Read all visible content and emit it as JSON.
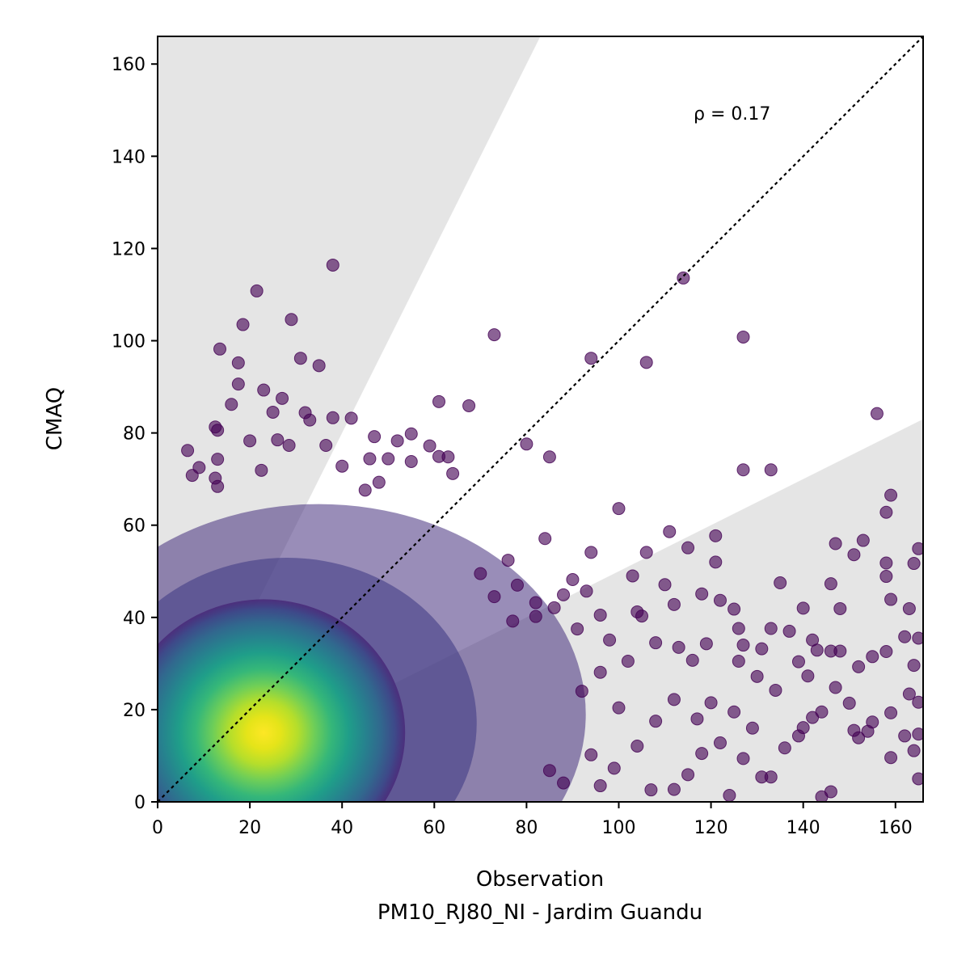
{
  "chart_data": {
    "type": "scatter",
    "title": "",
    "xlabel": "Observation",
    "xlabel_sub": "PM10_RJ80_NI - Jardim Guandu",
    "ylabel": "CMAQ",
    "xlim": [
      0,
      166
    ],
    "ylim": [
      0,
      166
    ],
    "xticks": [
      "0",
      "20",
      "40",
      "60",
      "80",
      "100",
      "120",
      "140",
      "160"
    ],
    "yticks": [
      "0",
      "20",
      "40",
      "60",
      "80",
      "100",
      "120",
      "140",
      "160"
    ],
    "grid": false,
    "legend": "none",
    "annotation": "ρ = 0.17",
    "reference_line": "1:1",
    "factor_of_two_band": true,
    "color_by": "point density",
    "colormap": [
      "#440154",
      "#3b528b",
      "#21918c",
      "#5ec962",
      "#fde725"
    ],
    "band_color": "#e5e5e5",
    "point_color_outlier": "#440154",
    "density_peak": [
      23,
      15
    ],
    "outliers": [
      [
        38,
        116.4
      ],
      [
        21.5,
        110.8
      ],
      [
        114,
        113.6
      ],
      [
        29,
        104.6
      ],
      [
        18.5,
        103.5
      ],
      [
        73,
        101.3
      ],
      [
        127,
        100.8
      ],
      [
        94,
        96.2
      ],
      [
        31,
        96.2
      ],
      [
        13.5,
        98.2
      ],
      [
        106,
        95.3
      ],
      [
        35,
        94.6
      ],
      [
        17.5,
        95.2
      ],
      [
        17.5,
        90.6
      ],
      [
        23,
        89.3
      ],
      [
        27,
        87.5
      ],
      [
        16,
        86.2
      ],
      [
        61,
        86.8
      ],
      [
        67.5,
        85.9
      ],
      [
        156,
        84.2
      ],
      [
        12.5,
        81.3
      ],
      [
        13,
        80.6
      ],
      [
        32,
        84.4
      ],
      [
        38,
        83.3
      ],
      [
        42,
        83.2
      ],
      [
        33,
        82.8
      ],
      [
        25,
        84.5
      ],
      [
        20,
        78.3
      ],
      [
        6.5,
        76.2
      ],
      [
        36.5,
        77.3
      ],
      [
        26,
        78.5
      ],
      [
        80,
        77.6
      ],
      [
        9,
        72.5
      ],
      [
        7.5,
        70.8
      ],
      [
        13,
        74.3
      ],
      [
        28.5,
        77.3
      ],
      [
        63,
        74.8
      ],
      [
        85,
        74.8
      ],
      [
        127,
        72
      ],
      [
        133,
        72
      ],
      [
        55,
        73.8
      ],
      [
        12.5,
        70.2
      ],
      [
        64,
        71.2
      ],
      [
        22.5,
        71.9
      ],
      [
        13,
        68.4
      ],
      [
        100,
        63.6
      ],
      [
        159,
        66.5
      ],
      [
        158,
        62.8
      ],
      [
        111,
        58.6
      ],
      [
        121,
        57.7
      ],
      [
        84,
        57.1
      ],
      [
        147,
        56
      ],
      [
        153,
        56.7
      ],
      [
        115,
        55.1
      ],
      [
        165,
        54.9
      ],
      [
        94,
        54.1
      ],
      [
        106,
        54.1
      ],
      [
        151,
        53.6
      ],
      [
        121,
        52
      ],
      [
        158,
        51.8
      ],
      [
        103,
        49
      ],
      [
        164,
        51.7
      ],
      [
        110,
        47.1
      ],
      [
        90,
        48.2
      ],
      [
        135,
        47.5
      ],
      [
        146,
        47.3
      ],
      [
        158,
        48.9
      ],
      [
        118,
        45.1
      ],
      [
        159,
        43.9
      ],
      [
        112,
        42.8
      ],
      [
        122,
        43.7
      ],
      [
        140,
        42
      ],
      [
        148,
        41.9
      ],
      [
        163,
        41.9
      ],
      [
        125,
        41.8
      ],
      [
        104,
        41.2
      ],
      [
        105,
        40.3
      ],
      [
        126,
        37.6
      ],
      [
        133,
        37.6
      ],
      [
        137,
        37
      ],
      [
        142,
        35.1
      ],
      [
        162,
        35.8
      ],
      [
        165,
        35.5
      ],
      [
        131,
        33.2
      ],
      [
        148,
        32.7
      ],
      [
        146,
        32.7
      ],
      [
        152,
        29.3
      ],
      [
        158,
        32.6
      ],
      [
        164,
        29.6
      ],
      [
        155,
        31.5
      ],
      [
        116,
        30.7
      ],
      [
        126,
        30.5
      ],
      [
        139,
        30.4
      ],
      [
        143,
        32.9
      ],
      [
        141,
        27.3
      ],
      [
        130,
        27.2
      ],
      [
        134,
        24.2
      ],
      [
        147,
        24.8
      ],
      [
        163,
        23.4
      ],
      [
        165,
        21.6
      ],
      [
        150,
        21.4
      ],
      [
        120,
        21.5
      ],
      [
        112,
        22.2
      ],
      [
        144,
        19.5
      ],
      [
        142,
        18.3
      ],
      [
        139,
        14.3
      ],
      [
        155,
        17.3
      ],
      [
        159,
        19.3
      ],
      [
        151,
        15.5
      ],
      [
        152,
        13.9
      ],
      [
        154,
        15.3
      ],
      [
        162,
        14.3
      ],
      [
        164,
        11.1
      ],
      [
        165,
        14.7
      ],
      [
        159,
        9.6
      ],
      [
        131,
        5.4
      ],
      [
        133,
        5.4
      ],
      [
        165,
        5
      ],
      [
        146,
        2.2
      ],
      [
        144,
        1.1
      ],
      [
        124,
        1.4
      ],
      [
        112,
        2.7
      ],
      [
        107,
        2.6
      ],
      [
        115,
        5.9
      ],
      [
        99,
        7.3
      ],
      [
        96,
        3.5
      ],
      [
        88,
        4.1
      ],
      [
        85,
        6.8
      ],
      [
        94,
        10.2
      ],
      [
        104,
        12.1
      ],
      [
        118,
        10.5
      ],
      [
        122,
        12.8
      ],
      [
        127,
        9.4
      ],
      [
        136,
        11.7
      ],
      [
        140,
        16.1
      ],
      [
        129,
        16
      ],
      [
        125,
        19.5
      ],
      [
        117,
        18
      ],
      [
        108,
        17.5
      ],
      [
        100,
        20.4
      ],
      [
        92,
        24
      ],
      [
        96,
        28.1
      ],
      [
        102,
        30.5
      ],
      [
        108,
        34.5
      ],
      [
        113,
        33.5
      ],
      [
        119,
        34.3
      ],
      [
        127,
        34
      ],
      [
        98,
        35.1
      ],
      [
        91,
        37.5
      ],
      [
        86,
        42.1
      ],
      [
        82,
        40.2
      ],
      [
        96,
        40.5
      ],
      [
        76,
        52.4
      ],
      [
        70,
        49.5
      ],
      [
        78,
        47
      ],
      [
        73,
        44.5
      ],
      [
        88,
        44.9
      ],
      [
        93,
        45.7
      ],
      [
        82,
        43.2
      ],
      [
        77,
        39.2
      ],
      [
        55,
        79.8
      ],
      [
        59,
        77.2
      ],
      [
        61,
        74.9
      ],
      [
        52,
        78.3
      ],
      [
        47,
        79.2
      ],
      [
        50,
        74.4
      ],
      [
        46,
        74.4
      ],
      [
        40,
        72.8
      ],
      [
        45,
        67.6
      ],
      [
        48,
        69.3
      ]
    ]
  }
}
